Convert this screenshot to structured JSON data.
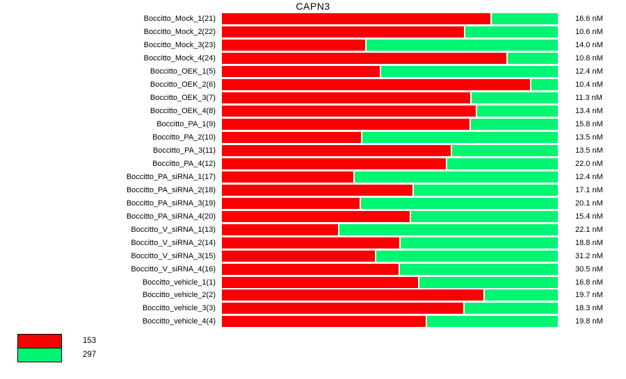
{
  "title": "CAPN3",
  "legend": {
    "items": [
      {
        "label": "153",
        "color": "#FA0000"
      },
      {
        "label": "297",
        "color": "#00F573"
      }
    ]
  },
  "chart_data": {
    "type": "bar",
    "variant": "horizontal-stacked-100pct",
    "title": "CAPN3",
    "xlabel": "",
    "ylabel": "",
    "legend_position": "bottom-left",
    "series": [
      {
        "name": "153",
        "color": "#FA0000"
      },
      {
        "name": "297",
        "color": "#00F573"
      }
    ],
    "rows": [
      {
        "label": "Boccitto_Mock_1(21)",
        "value": "16.6 nM",
        "red_pct": 80.3
      },
      {
        "label": "Boccitto_Mock_2(22)",
        "value": "10.6 nM",
        "red_pct": 72.5
      },
      {
        "label": "Boccitto_Mock_3(23)",
        "value": "14.0 nM",
        "red_pct": 43.1
      },
      {
        "label": "Boccitto_Mock_4(24)",
        "value": "10.8 nM",
        "red_pct": 85.1
      },
      {
        "label": "Boccitto_OEK_1(5)",
        "value": "12.4 nM",
        "red_pct": 47.4
      },
      {
        "label": "Boccitto_OEK_2(6)",
        "value": "10.4 nM",
        "red_pct": 92.1
      },
      {
        "label": "Boccitto_OEK_3(7)",
        "value": "11.3 nM",
        "red_pct": 74.3
      },
      {
        "label": "Boccitto_OEK_4(8)",
        "value": "13.4 nM",
        "red_pct": 76.0
      },
      {
        "label": "Boccitto_PA_1(9)",
        "value": "15.8 nM",
        "red_pct": 74.1
      },
      {
        "label": "Boccitto_PA_2(10)",
        "value": "13.5 nM",
        "red_pct": 41.8
      },
      {
        "label": "Boccitto_PA_3(11)",
        "value": "13.5 nM",
        "red_pct": 68.5
      },
      {
        "label": "Boccitto_PA_4(12)",
        "value": "22.0 nM",
        "red_pct": 67.1
      },
      {
        "label": "Boccitto_PA_siRNA_1(17)",
        "value": "12.4 nM",
        "red_pct": 39.5
      },
      {
        "label": "Boccitto_PA_siRNA_2(18)",
        "value": "17.1 nM",
        "red_pct": 57.1
      },
      {
        "label": "Boccitto_PA_siRNA_3(19)",
        "value": "20.1 nM",
        "red_pct": 41.4
      },
      {
        "label": "Boccitto_PA_siRNA_4(20)",
        "value": "15.4 nM",
        "red_pct": 56.3
      },
      {
        "label": "Boccitto_V_siRNA_1(13)",
        "value": "22.1 nM",
        "red_pct": 35.0
      },
      {
        "label": "Boccitto_V_siRNA_2(14)",
        "value": "18.8 nM",
        "red_pct": 53.2
      },
      {
        "label": "Boccitto_V_siRNA_3(15)",
        "value": "31.2 nM",
        "red_pct": 46.0
      },
      {
        "label": "Boccitto_V_siRNA_4(16)",
        "value": "30.5 nM",
        "red_pct": 53.0
      },
      {
        "label": "Boccitto_vehicle_1(1)",
        "value": "16.8 nM",
        "red_pct": 58.8
      },
      {
        "label": "Boccitto_vehicle_2(2)",
        "value": "19.7 nM",
        "red_pct": 78.3
      },
      {
        "label": "Boccitto_vehicle_3(3)",
        "value": "18.3 nM",
        "red_pct": 72.3
      },
      {
        "label": "Boccitto_vehicle_4(4)",
        "value": "19.8 nM",
        "red_pct": 61.1
      }
    ]
  }
}
